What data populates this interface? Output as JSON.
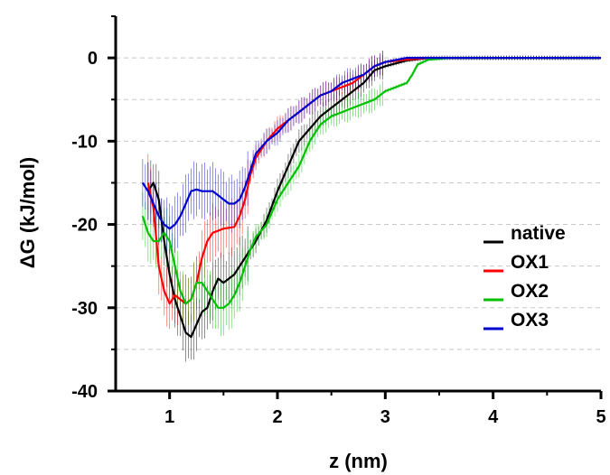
{
  "chart_data": {
    "type": "line",
    "xlabel": "z (nm)",
    "ylabel": "ΔG (kJ/mol)",
    "xlim": [
      0.5,
      5.0
    ],
    "ylim": [
      -40,
      5
    ],
    "x_ticks": [
      1,
      2,
      3,
      4,
      5
    ],
    "x_tick_labels": [
      "1",
      "2",
      "3",
      "4",
      "5"
    ],
    "y_ticks": [
      0,
      -10,
      -20,
      -30,
      -40
    ],
    "y_tick_labels": [
      "0",
      "-10",
      "-20",
      "-30",
      "-40"
    ],
    "grid": "horizontal dashed at y = 0, -5, -10, -15, -20, -25, -30, -35",
    "legend_position": "lower-right",
    "series": [
      {
        "name": "native",
        "color": "#000000",
        "error_bars": true,
        "points": [
          [
            0.8,
            -16
          ],
          [
            0.85,
            -15
          ],
          [
            0.9,
            -17
          ],
          [
            0.95,
            -22
          ],
          [
            1.0,
            -26
          ],
          [
            1.05,
            -29
          ],
          [
            1.1,
            -31
          ],
          [
            1.15,
            -33
          ],
          [
            1.2,
            -33.5
          ],
          [
            1.25,
            -32
          ],
          [
            1.3,
            -30.5
          ],
          [
            1.35,
            -30
          ],
          [
            1.4,
            -28
          ],
          [
            1.45,
            -26.5
          ],
          [
            1.5,
            -27
          ],
          [
            1.55,
            -26.5
          ],
          [
            1.6,
            -26
          ],
          [
            1.65,
            -25
          ],
          [
            1.7,
            -24
          ],
          [
            1.8,
            -22
          ],
          [
            1.9,
            -19.5
          ],
          [
            2.0,
            -16
          ],
          [
            2.1,
            -13
          ],
          [
            2.2,
            -10
          ],
          [
            2.3,
            -8.5
          ],
          [
            2.4,
            -7
          ],
          [
            2.5,
            -6
          ],
          [
            2.6,
            -5
          ],
          [
            2.7,
            -4
          ],
          [
            2.8,
            -3
          ],
          [
            2.9,
            -1.5
          ],
          [
            3.0,
            -1
          ],
          [
            3.2,
            -0.3
          ],
          [
            3.4,
            0
          ],
          [
            3.6,
            0
          ],
          [
            3.8,
            0
          ],
          [
            4.0,
            0
          ],
          [
            4.2,
            0
          ],
          [
            4.4,
            0
          ],
          [
            4.6,
            0
          ],
          [
            4.8,
            0
          ],
          [
            5.0,
            0
          ]
        ]
      },
      {
        "name": "OX1",
        "color": "#ff0000",
        "error_bars": true,
        "points": [
          [
            0.8,
            -15
          ],
          [
            0.85,
            -18
          ],
          [
            0.9,
            -25
          ],
          [
            0.95,
            -28
          ],
          [
            1.0,
            -29.5
          ],
          [
            1.05,
            -28.5
          ],
          [
            1.1,
            -29
          ],
          [
            1.15,
            -29.5
          ],
          [
            1.2,
            -29
          ],
          [
            1.25,
            -27
          ],
          [
            1.3,
            -24
          ],
          [
            1.35,
            -22
          ],
          [
            1.4,
            -21
          ],
          [
            1.5,
            -20.5
          ],
          [
            1.6,
            -20.3
          ],
          [
            1.65,
            -19
          ],
          [
            1.7,
            -17
          ],
          [
            1.75,
            -14
          ],
          [
            1.8,
            -12
          ],
          [
            1.85,
            -11
          ],
          [
            1.9,
            -10
          ],
          [
            2.0,
            -8.5
          ],
          [
            2.1,
            -7.5
          ],
          [
            2.2,
            -6.5
          ],
          [
            2.3,
            -5.5
          ],
          [
            2.4,
            -4.5
          ],
          [
            2.5,
            -4
          ],
          [
            2.6,
            -3.5
          ],
          [
            2.7,
            -3
          ],
          [
            2.8,
            -2
          ],
          [
            2.9,
            -1
          ],
          [
            3.0,
            -0.5
          ],
          [
            3.2,
            -0.2
          ],
          [
            3.4,
            0
          ],
          [
            3.6,
            0
          ],
          [
            3.8,
            0
          ],
          [
            4.0,
            0
          ],
          [
            4.2,
            0
          ],
          [
            4.4,
            0
          ],
          [
            4.6,
            0
          ],
          [
            4.8,
            0
          ],
          [
            5.0,
            0
          ]
        ]
      },
      {
        "name": "OX2",
        "color": "#00c000",
        "error_bars": true,
        "points": [
          [
            0.75,
            -19
          ],
          [
            0.8,
            -21
          ],
          [
            0.85,
            -22
          ],
          [
            0.9,
            -22
          ],
          [
            0.95,
            -21
          ],
          [
            1.0,
            -22
          ],
          [
            1.05,
            -25
          ],
          [
            1.1,
            -28
          ],
          [
            1.15,
            -29.5
          ],
          [
            1.2,
            -29
          ],
          [
            1.25,
            -27
          ],
          [
            1.3,
            -27
          ],
          [
            1.35,
            -28
          ],
          [
            1.4,
            -29
          ],
          [
            1.45,
            -30
          ],
          [
            1.5,
            -30
          ],
          [
            1.55,
            -29.5
          ],
          [
            1.6,
            -28.5
          ],
          [
            1.65,
            -27
          ],
          [
            1.7,
            -25
          ],
          [
            1.75,
            -23
          ],
          [
            1.8,
            -21.5
          ],
          [
            1.9,
            -20
          ],
          [
            2.0,
            -17
          ],
          [
            2.1,
            -15
          ],
          [
            2.2,
            -13
          ],
          [
            2.3,
            -10
          ],
          [
            2.4,
            -8
          ],
          [
            2.5,
            -7
          ],
          [
            2.6,
            -6.5
          ],
          [
            2.7,
            -6
          ],
          [
            2.8,
            -5.5
          ],
          [
            2.9,
            -5
          ],
          [
            3.0,
            -4
          ],
          [
            3.1,
            -3.5
          ],
          [
            3.2,
            -3
          ],
          [
            3.25,
            -2
          ],
          [
            3.3,
            -0.8
          ],
          [
            3.4,
            -0.2
          ],
          [
            3.6,
            0
          ],
          [
            3.8,
            0
          ],
          [
            4.0,
            0
          ],
          [
            4.2,
            0
          ],
          [
            4.4,
            0
          ],
          [
            4.6,
            0
          ],
          [
            4.8,
            0
          ],
          [
            5.0,
            0
          ]
        ]
      },
      {
        "name": "OX3",
        "color": "#0000cc",
        "error_bars": true,
        "points": [
          [
            0.75,
            -15
          ],
          [
            0.8,
            -16
          ],
          [
            0.85,
            -17.5
          ],
          [
            0.9,
            -19
          ],
          [
            0.95,
            -20
          ],
          [
            1.0,
            -20.5
          ],
          [
            1.05,
            -20
          ],
          [
            1.1,
            -19
          ],
          [
            1.15,
            -17.5
          ],
          [
            1.2,
            -16
          ],
          [
            1.25,
            -15.8
          ],
          [
            1.3,
            -16
          ],
          [
            1.35,
            -16
          ],
          [
            1.4,
            -16
          ],
          [
            1.45,
            -16.5
          ],
          [
            1.5,
            -17
          ],
          [
            1.55,
            -17.5
          ],
          [
            1.6,
            -17.5
          ],
          [
            1.65,
            -17
          ],
          [
            1.7,
            -15.5
          ],
          [
            1.75,
            -13.5
          ],
          [
            1.8,
            -11.5
          ],
          [
            1.9,
            -10
          ],
          [
            2.0,
            -9
          ],
          [
            2.1,
            -7.5
          ],
          [
            2.2,
            -6.5
          ],
          [
            2.3,
            -5.5
          ],
          [
            2.4,
            -4.5
          ],
          [
            2.5,
            -4
          ],
          [
            2.6,
            -3
          ],
          [
            2.7,
            -2.5
          ],
          [
            2.8,
            -2
          ],
          [
            2.9,
            -1
          ],
          [
            3.0,
            -0.5
          ],
          [
            3.2,
            0
          ],
          [
            3.4,
            0
          ],
          [
            3.6,
            0
          ],
          [
            3.8,
            0
          ],
          [
            4.0,
            0
          ],
          [
            4.2,
            0
          ],
          [
            4.4,
            0
          ],
          [
            4.6,
            0
          ],
          [
            4.8,
            0
          ],
          [
            5.0,
            0
          ]
        ]
      }
    ]
  }
}
